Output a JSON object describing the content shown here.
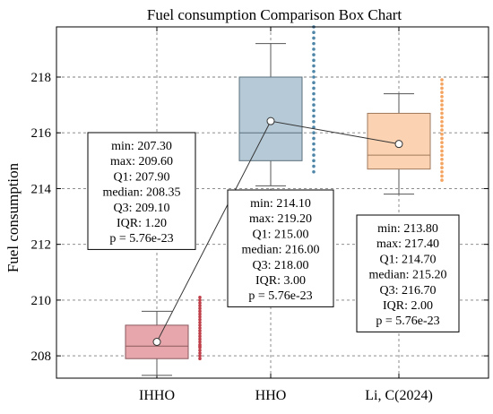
{
  "chart_data": {
    "type": "box",
    "title": "Fuel consumption Comparison Box Chart",
    "xlabel": "",
    "ylabel": "Fuel consumption",
    "ylim": [
      207.2,
      219.8
    ],
    "yticks": [
      208,
      210,
      212,
      214,
      216,
      218
    ],
    "grid": true,
    "categories": [
      "IHHO",
      "HHO",
      "Li, C(2024)"
    ],
    "boxes": [
      {
        "category": "IHHO",
        "min": 207.3,
        "max": 209.6,
        "q1": 207.9,
        "median": 208.35,
        "q3": 209.1,
        "color": "#e6a6ab",
        "edge": "#8a5a5e",
        "point_color": "#c0404a",
        "points": [
          207.9,
          208.0,
          208.1,
          208.2,
          208.3,
          208.35,
          208.4,
          208.5,
          208.6,
          208.7,
          208.8,
          208.9,
          209.0,
          209.1,
          209.2,
          209.3,
          209.4,
          209.5,
          209.6,
          209.7,
          209.8,
          209.9,
          210.0,
          210.1
        ],
        "stats": [
          "min: 207.30",
          "max: 209.60",
          "Q1: 207.90",
          "median: 208.35",
          "Q3: 209.10",
          "IQR: 1.20",
          "p = 5.76e-23"
        ]
      },
      {
        "category": "HHO",
        "min": 214.1,
        "max": 219.2,
        "q1": 215.0,
        "median": 216.0,
        "q3": 218.0,
        "color": "#b5c9d6",
        "edge": "#5a6f7d",
        "point_color": "#4f86a8",
        "points": [
          214.6,
          214.8,
          215.0,
          215.2,
          215.4,
          215.6,
          215.8,
          216.0,
          216.2,
          216.4,
          216.6,
          216.8,
          217.0,
          217.2,
          217.4,
          217.6,
          217.8,
          218.0,
          218.2,
          218.4,
          218.6,
          218.8,
          219.0,
          219.2,
          219.4,
          219.6,
          219.8
        ],
        "stats": [
          "min: 214.10",
          "max: 219.20",
          "Q1: 215.00",
          "median: 216.00",
          "Q3: 218.00",
          "IQR: 3.00",
          "p = 5.76e-23"
        ]
      },
      {
        "category": "Li, C(2024)",
        "min": 213.8,
        "max": 217.4,
        "q1": 214.7,
        "median": 215.2,
        "q3": 216.7,
        "color": "#fbd3b3",
        "edge": "#a07a5c",
        "point_color": "#f4a460",
        "points": [
          214.3,
          214.45,
          214.6,
          214.75,
          214.9,
          215.05,
          215.2,
          215.35,
          215.5,
          215.65,
          215.8,
          215.95,
          216.1,
          216.25,
          216.4,
          216.55,
          216.7,
          216.85,
          217.0,
          217.15,
          217.3,
          217.45,
          217.6,
          217.75,
          217.9
        ],
        "stats": [
          "min: 213.80",
          "max: 217.40",
          "Q1: 214.70",
          "median: 215.20",
          "Q3: 216.70",
          "IQR: 2.00",
          "p = 5.76e-23"
        ]
      }
    ],
    "means": [
      208.5,
      216.42,
      215.6
    ]
  }
}
